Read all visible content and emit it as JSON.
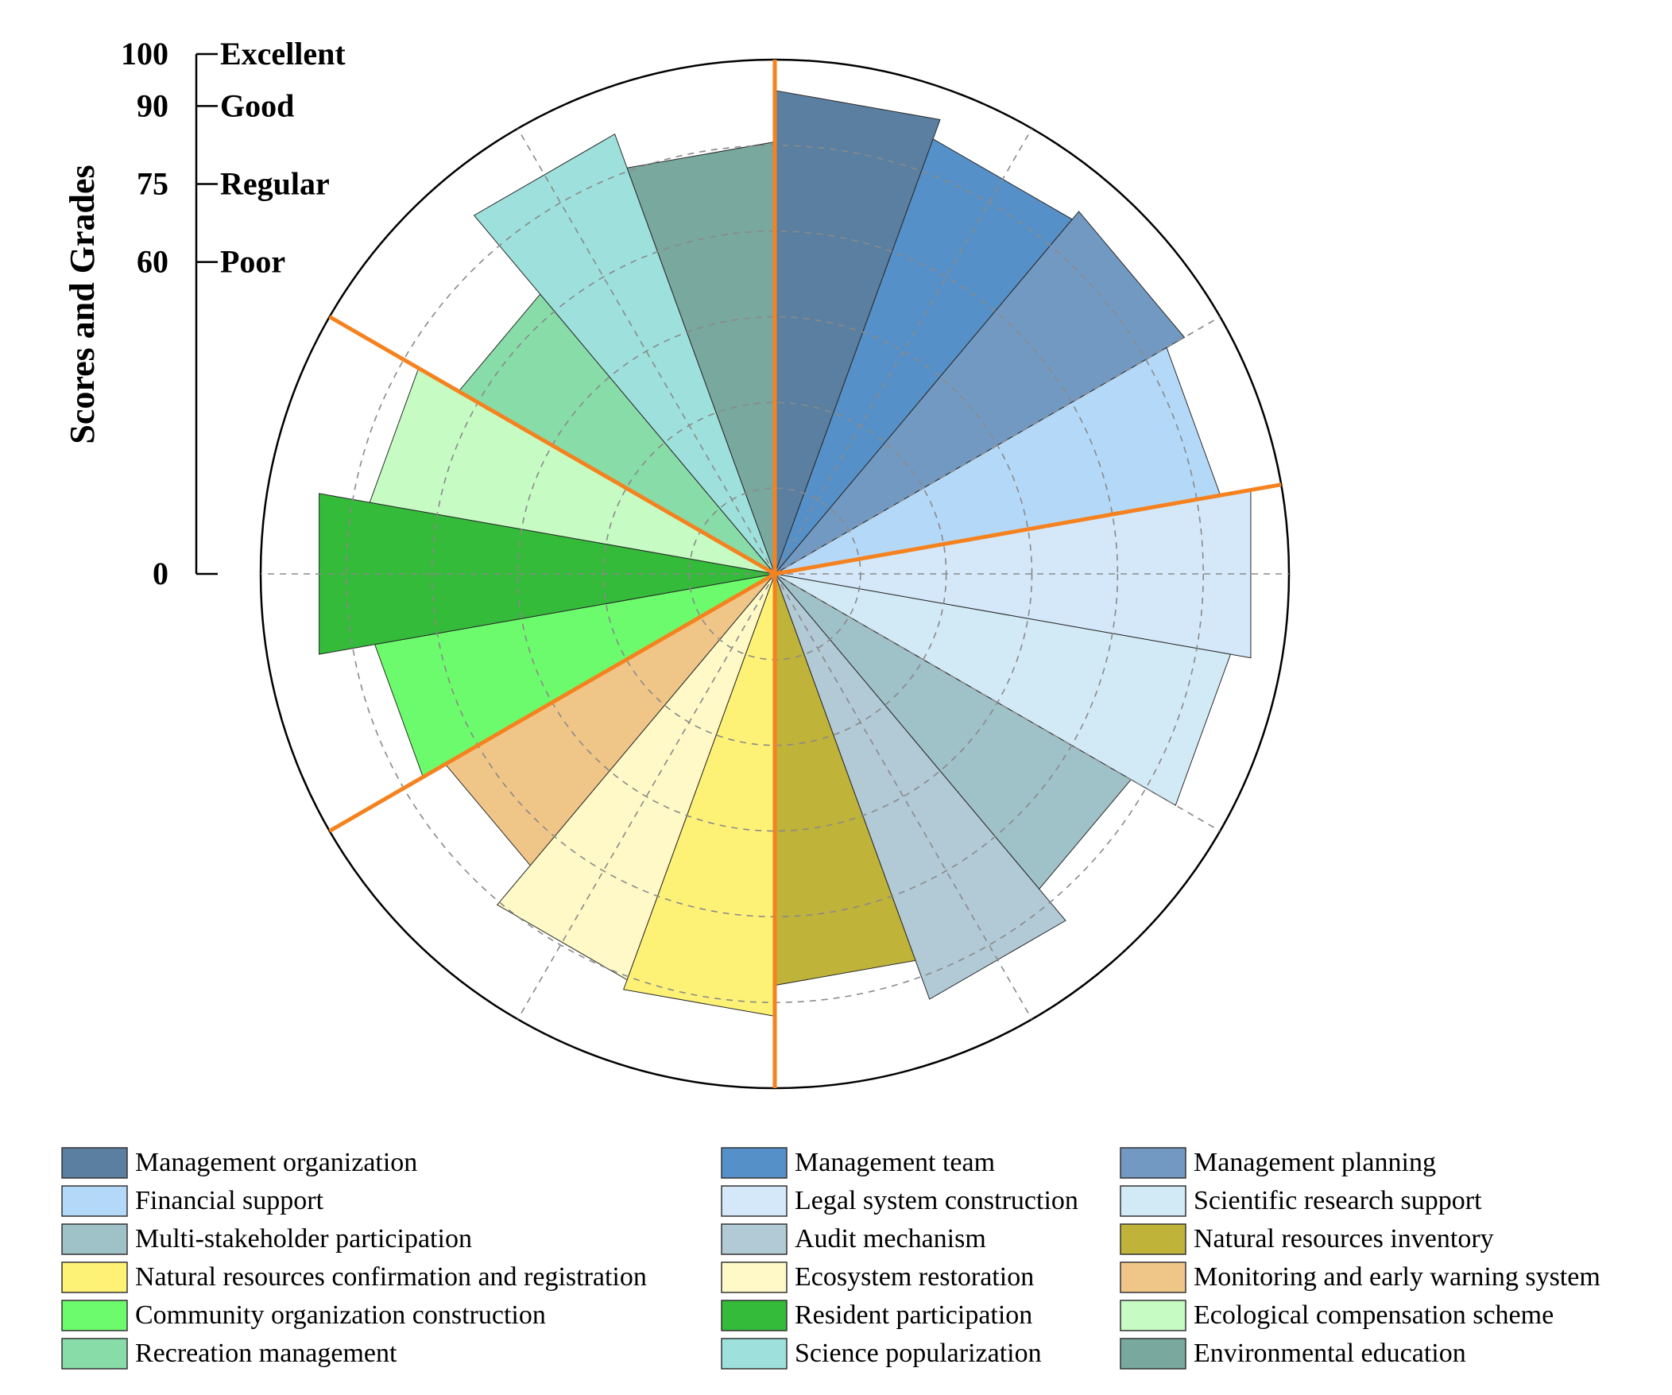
{
  "chart_data": {
    "type": "polar-bar",
    "title": "",
    "y_axis_title": "Scores and Grades",
    "r_range": [
      0,
      100
    ],
    "r_ticks": [
      0,
      60,
      75,
      90,
      100
    ],
    "grades": [
      {
        "value": 100,
        "label": "Excellent"
      },
      {
        "value": 90,
        "label": "Good"
      },
      {
        "value": 75,
        "label": "Regular"
      },
      {
        "value": 60,
        "label": "Poor"
      }
    ],
    "grid": true,
    "legend_position": "bottom",
    "categories": [
      {
        "name": "Management organization",
        "value": 94,
        "color": "#5a7fa1"
      },
      {
        "name": "Management team",
        "value": 90,
        "color": "#5590c8"
      },
      {
        "name": "Management planning",
        "value": 92,
        "color": "#7299c2"
      },
      {
        "name": "Financial support",
        "value": 88,
        "color": "#b4d8f8"
      },
      {
        "name": "Legal system construction",
        "value": 94,
        "color": "#d4e8fa"
      },
      {
        "name": "Scientific research support",
        "value": 90,
        "color": "#d2eaf5"
      },
      {
        "name": "Multi-stakeholder participation",
        "value": 80,
        "color": "#9fc1c8"
      },
      {
        "name": "Audit mechanism",
        "value": 88,
        "color": "#b1cad6"
      },
      {
        "name": "Natural resources inventory",
        "value": 80,
        "color": "#c0b339"
      },
      {
        "name": "Natural resources confirmation and registration",
        "value": 86,
        "color": "#fef276"
      },
      {
        "name": "Ecosystem restoration",
        "value": 84,
        "color": "#fef9c6"
      },
      {
        "name": "Monitoring and early warning system",
        "value": 74,
        "color": "#f0c688"
      },
      {
        "name": "Community organization construction",
        "value": 79,
        "color": "#6cfb6c"
      },
      {
        "name": "Resident participation",
        "value": 90,
        "color": "#33bb39"
      },
      {
        "name": "Ecological compensation scheme",
        "value": 80,
        "color": "#c6fbc4"
      },
      {
        "name": "Recreation management",
        "value": 71,
        "color": "#88dca8"
      },
      {
        "name": "Science popularization",
        "value": 91,
        "color": "#9ee0dc"
      },
      {
        "name": "Environmental education",
        "value": 84,
        "color": "#78a89e"
      }
    ],
    "group_divider_color": "#f5821f"
  }
}
